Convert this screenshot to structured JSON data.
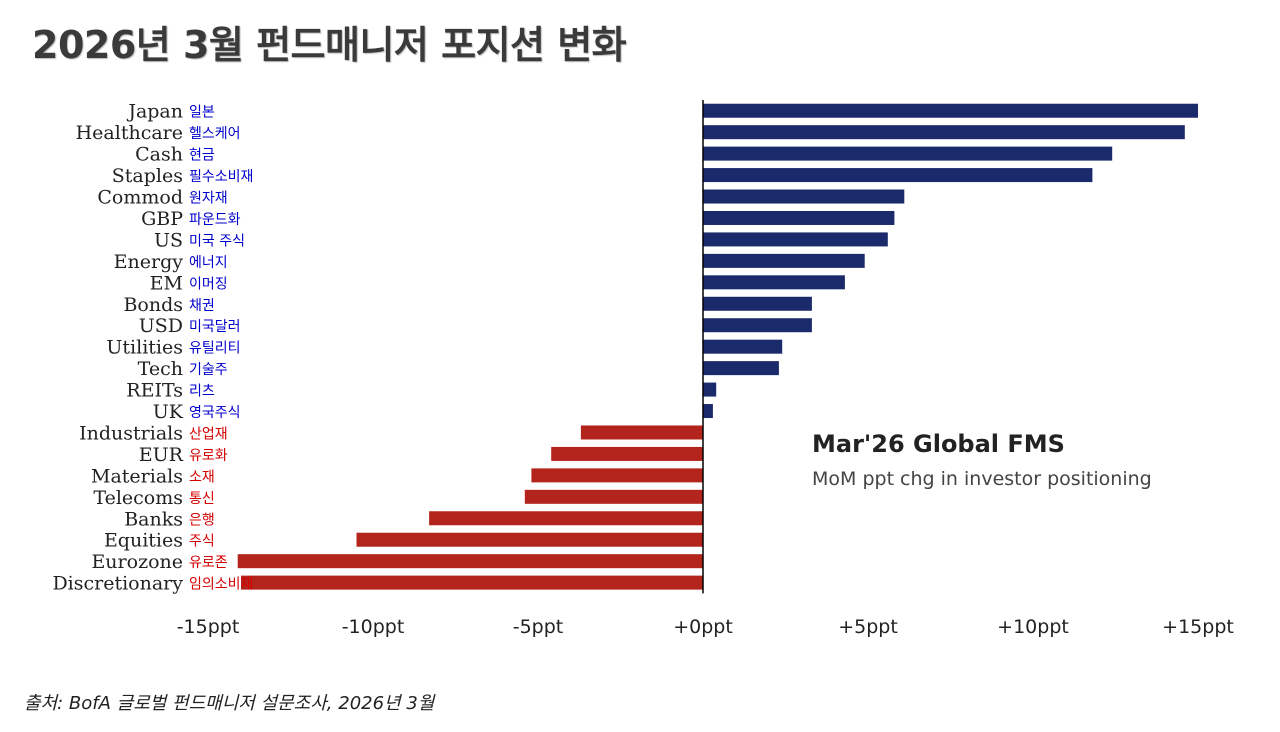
{
  "page_title": "2026년 3월 펀드매니저 포지션 변화",
  "source": "출처: BofA 글로벌 펀드매니저 설문조사, 2026년 3월",
  "colors": {
    "positive": "#1b2a6b",
    "negative": "#b3251c",
    "label_ko_positive": "#0000cc",
    "label_ko_negative": "#d40000",
    "label_en": "#222222"
  },
  "chart_data": {
    "type": "bar",
    "orientation": "horizontal",
    "title": "Mar'26 Global FMS",
    "subtitle": "MoM ppt chg in investor positioning",
    "xlim": [
      -15,
      15
    ],
    "x_ticks": [
      -15,
      -10,
      -5,
      0,
      5,
      10,
      15
    ],
    "x_tick_labels": [
      "-15ppt",
      "-10ppt",
      "-5ppt",
      "+0ppt",
      "+5ppt",
      "+10ppt",
      "+15ppt"
    ],
    "grid": false,
    "categories": [
      "Japan",
      "Healthcare",
      "Cash",
      "Staples",
      "Commod",
      "GBP",
      "US",
      "Energy",
      "EM",
      "Bonds",
      "USD",
      "Utilities",
      "Tech",
      "REITs",
      "UK",
      "Industrials",
      "EUR",
      "Materials",
      "Telecoms",
      "Banks",
      "Equities",
      "Eurozone",
      "Discretionary"
    ],
    "categories_ko": [
      "일본",
      "헬스케어",
      "현금",
      "필수소비재",
      "원자재",
      "파운드화",
      "미국 주식",
      "에너지",
      "이머징",
      "채권",
      "미국달러",
      "유틸리티",
      "기술주",
      "리츠",
      "영국주식",
      "산업재",
      "유로화",
      "소재",
      "통신",
      "은행",
      "주식",
      "유로존",
      "임의소비재"
    ],
    "values": [
      15,
      14.6,
      12.4,
      11.8,
      6.1,
      5.8,
      5.6,
      4.9,
      4.3,
      3.3,
      3.3,
      2.4,
      2.3,
      0.4,
      0.3,
      -3.7,
      -4.6,
      -5.2,
      -5.4,
      -8.3,
      -10.5,
      -14.1,
      -14.0
    ]
  }
}
